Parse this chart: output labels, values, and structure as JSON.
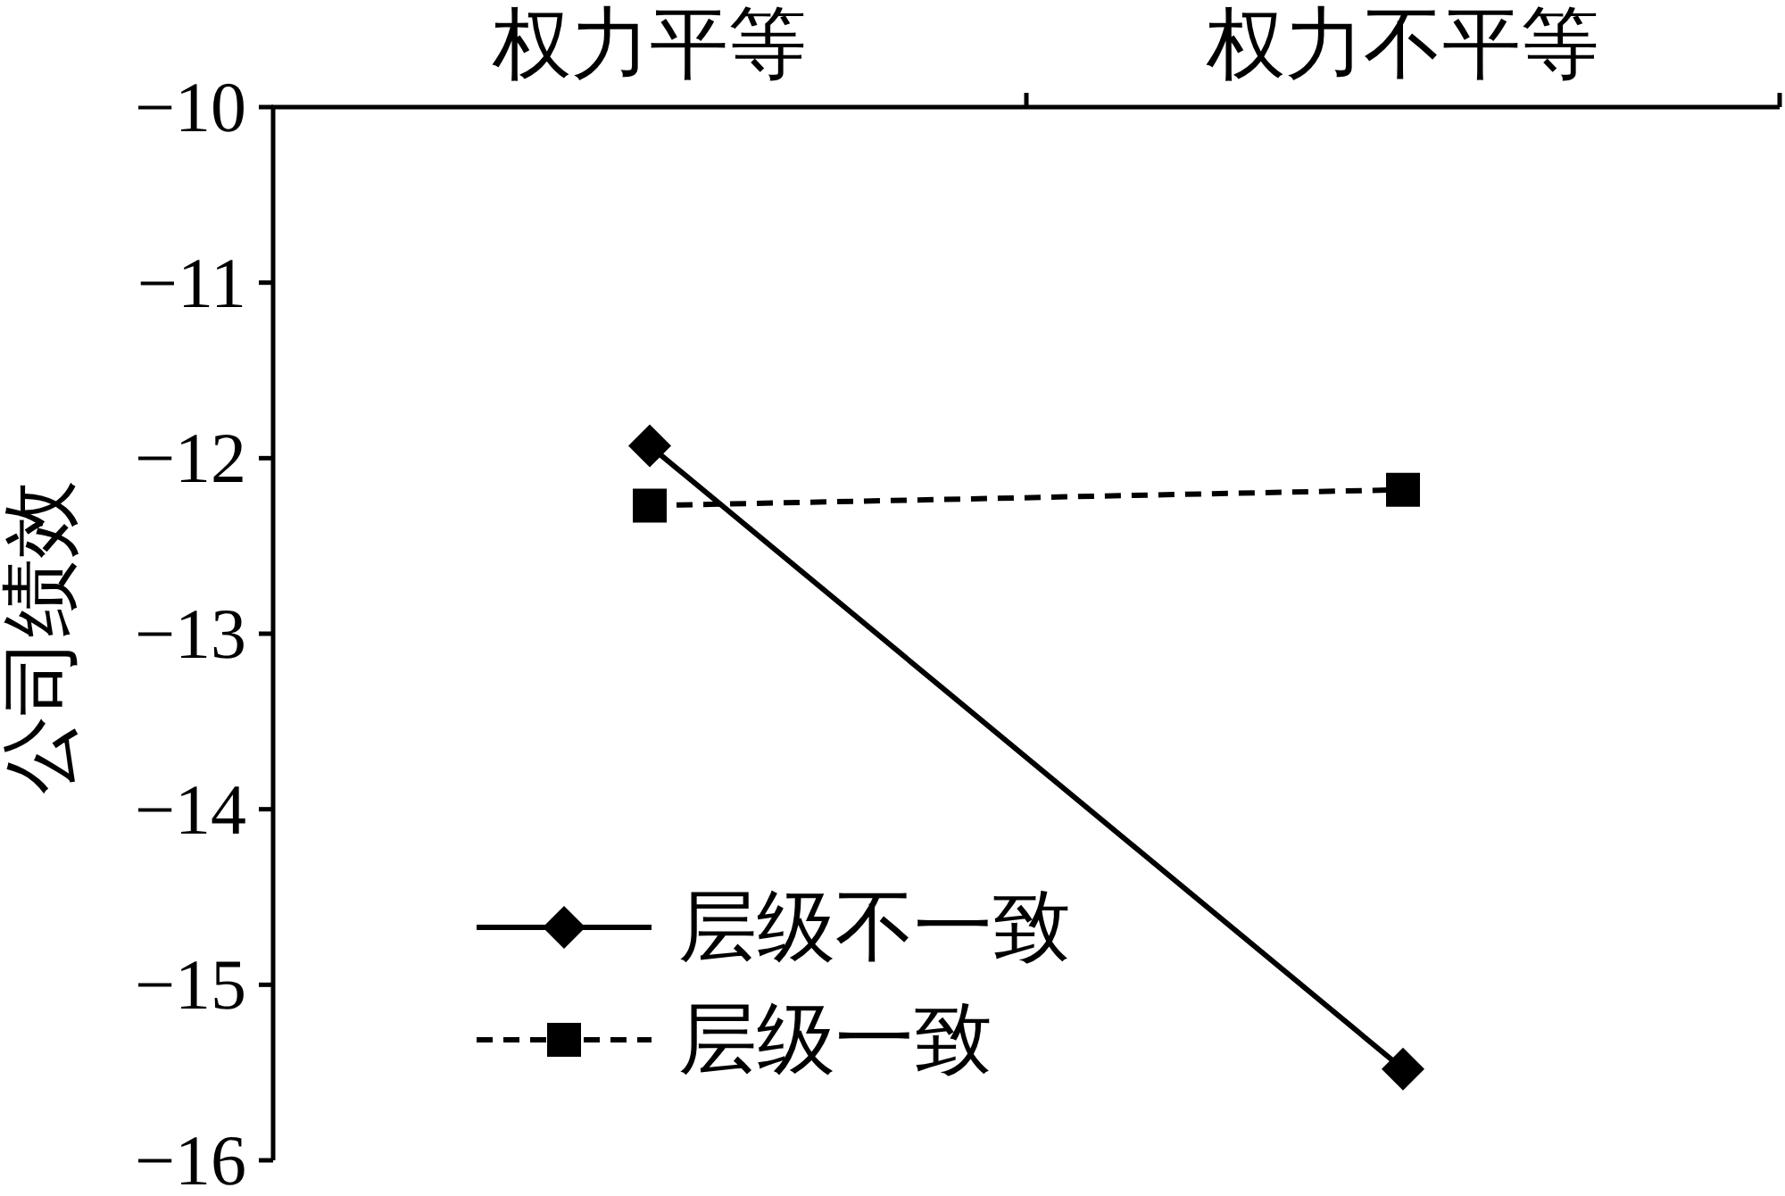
{
  "chart_data": {
    "type": "line",
    "categories": [
      "权力平等",
      "权力不平等"
    ],
    "ylabel": "公司绩效",
    "ylim": [
      -16,
      -10
    ],
    "yticks": [
      {
        "value": -16,
        "label": "−16"
      },
      {
        "value": -15,
        "label": "−15"
      },
      {
        "value": -14,
        "label": "−14"
      },
      {
        "value": -13,
        "label": "−13"
      },
      {
        "value": -12,
        "label": "−12"
      },
      {
        "value": -11,
        "label": "−11"
      },
      {
        "value": -10,
        "label": "−10"
      }
    ],
    "series": [
      {
        "name": "层级不一致",
        "color": "#000000",
        "values": [
          -11.93,
          -15.48
        ],
        "marker": "diamond",
        "line_style": "solid"
      },
      {
        "name": "层级一致",
        "color": "#000000",
        "values": [
          -12.27,
          -12.18
        ],
        "marker": "square",
        "line_style": "dashed"
      }
    ],
    "legend": "bottom left"
  }
}
